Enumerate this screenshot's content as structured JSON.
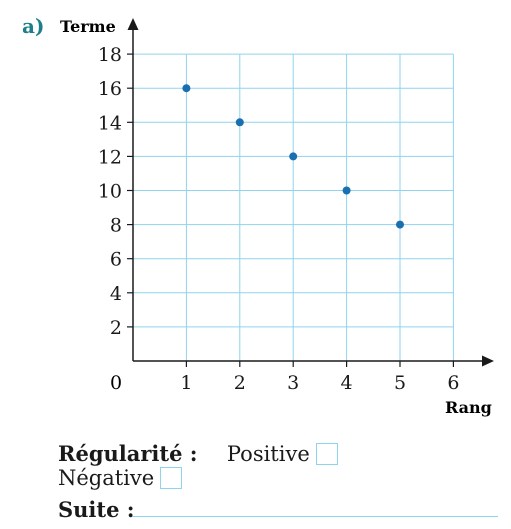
{
  "part_label": "a)",
  "chart_data": {
    "type": "scatter",
    "xlabel": "Rang",
    "ylabel": "Terme",
    "xlim": [
      0,
      6
    ],
    "ylim": [
      0,
      18
    ],
    "x_ticks": [
      1,
      2,
      3,
      4,
      5,
      6
    ],
    "y_ticks": [
      2,
      4,
      6,
      8,
      10,
      12,
      14,
      16,
      18
    ],
    "origin_label": "0",
    "grid": true,
    "points": [
      {
        "x": 1,
        "y": 16
      },
      {
        "x": 2,
        "y": 14
      },
      {
        "x": 3,
        "y": 12
      },
      {
        "x": 4,
        "y": 10
      },
      {
        "x": 5,
        "y": 8
      }
    ],
    "colors": {
      "grid": "#8fd3ee",
      "point": "#1a6fb0",
      "axis": "#1a1a1a"
    }
  },
  "answers": {
    "regularity_label": "Régularité :",
    "positive_label": "Positive",
    "negative_label": "Négative",
    "suite_label": "Suite :"
  }
}
